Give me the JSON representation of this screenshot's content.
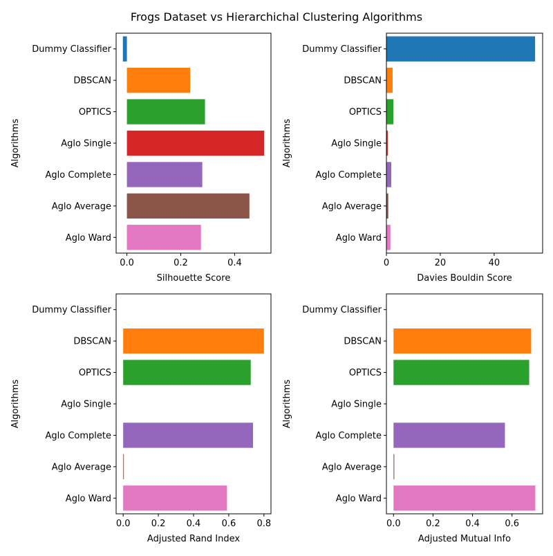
{
  "figure_title": "Frogs Dataset vs Hierarchichal Clustering Algorithms",
  "colors": [
    "#1f77b4",
    "#ff7f0e",
    "#2ca02c",
    "#d62728",
    "#9467bd",
    "#8c564b",
    "#e377c2"
  ],
  "chart_data": [
    {
      "type": "bar",
      "orientation": "horizontal",
      "categories": [
        "Dummy Classifier",
        "DBSCAN",
        "OPTICS",
        "Aglo Single",
        "Aglo Complete",
        "Aglo Average",
        "Aglo Ward"
      ],
      "values": [
        -0.015,
        0.235,
        0.29,
        0.51,
        0.28,
        0.455,
        0.275
      ],
      "xlabel": "Silhouette Score",
      "ylabel": "Algorithms",
      "xlim": [
        -0.04,
        0.535
      ],
      "xticks": [
        0.0,
        0.2,
        0.4
      ],
      "xtick_labels": [
        "0.0",
        "0.2",
        "0.4"
      ],
      "grid": false
    },
    {
      "type": "bar",
      "orientation": "horizontal",
      "categories": [
        "Dummy Classifier",
        "DBSCAN",
        "OPTICS",
        "Aglo Single",
        "Aglo Complete",
        "Aglo Average",
        "Aglo Ward"
      ],
      "values": [
        55.2,
        2.3,
        2.6,
        0.5,
        1.8,
        0.7,
        1.5
      ],
      "xlabel": "Davies Bouldin Score",
      "ylabel": "Algorithms",
      "xlim": [
        0,
        58
      ],
      "xticks": [
        0,
        20,
        40
      ],
      "xtick_labels": [
        "0",
        "20",
        "40"
      ],
      "grid": false
    },
    {
      "type": "bar",
      "orientation": "horizontal",
      "categories": [
        "Dummy Classifier",
        "DBSCAN",
        "OPTICS",
        "Aglo Single",
        "Aglo Complete",
        "Aglo Average",
        "Aglo Ward"
      ],
      "values": [
        0.0,
        0.8,
        0.725,
        0.0,
        0.738,
        0.004,
        0.59
      ],
      "xlabel": "Adjusted Rand Index",
      "ylabel": "Algorithms",
      "xlim": [
        -0.04,
        0.84
      ],
      "xticks": [
        0.0,
        0.2,
        0.4,
        0.6,
        0.8
      ],
      "xtick_labels": [
        "0.0",
        "0.2",
        "0.4",
        "0.6",
        "0.8"
      ],
      "grid": false
    },
    {
      "type": "bar",
      "orientation": "horizontal",
      "categories": [
        "Dummy Classifier",
        "DBSCAN",
        "OPTICS",
        "Aglo Single",
        "Aglo Complete",
        "Aglo Average",
        "Aglo Ward"
      ],
      "values": [
        0.0,
        0.697,
        0.687,
        0.0,
        0.564,
        0.004,
        0.718
      ],
      "xlabel": "Adjusted Mutual Info",
      "ylabel": "Algorithms",
      "xlim": [
        -0.036,
        0.755
      ],
      "xticks": [
        0.0,
        0.2,
        0.4,
        0.6
      ],
      "xtick_labels": [
        "0.0",
        "0.2",
        "0.4",
        "0.6"
      ],
      "grid": false
    }
  ]
}
